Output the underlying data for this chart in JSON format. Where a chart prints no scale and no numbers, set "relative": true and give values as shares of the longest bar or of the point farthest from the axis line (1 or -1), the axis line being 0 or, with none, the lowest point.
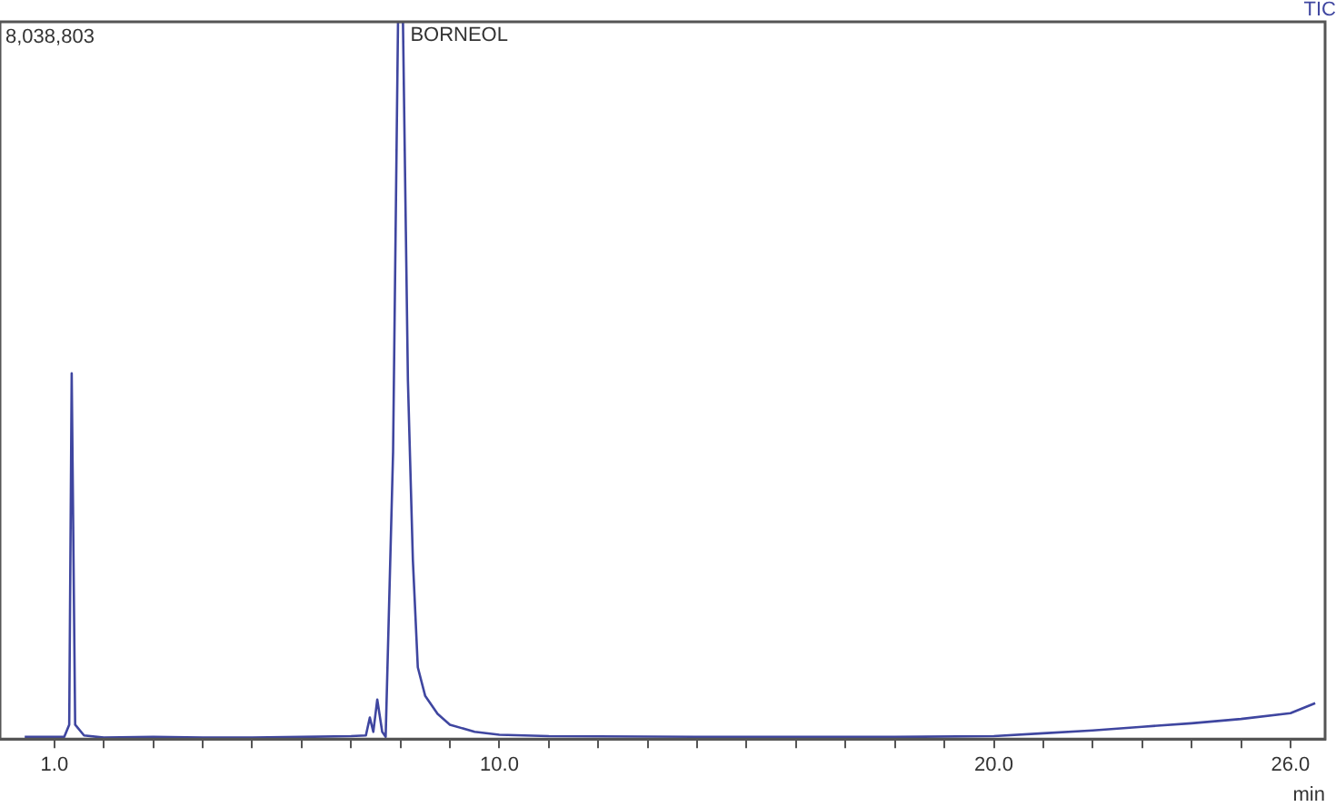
{
  "chart_data": {
    "type": "line",
    "relative": true,
    "xlabel": "min",
    "color": "#3f46a0",
    "marker": "none",
    "line_style": "solid",
    "grid": false,
    "legend": false,
    "x": [
      0.4,
      1.2,
      1.3,
      1.35,
      1.42,
      1.6,
      2.0,
      3.0,
      4.0,
      5.0,
      6.0,
      7.0,
      7.3,
      7.38,
      7.45,
      7.53,
      7.63,
      7.7,
      7.85,
      7.95,
      8.05,
      8.15,
      8.25,
      8.35,
      8.5,
      8.75,
      9.0,
      9.5,
      10,
      11,
      14,
      18,
      20,
      21,
      22,
      23,
      24,
      25,
      26,
      26.5
    ],
    "values": [
      0.003,
      0.003,
      0.02,
      0.51,
      0.02,
      0.005,
      0.002,
      0.003,
      0.002,
      0.002,
      0.003,
      0.004,
      0.005,
      0.03,
      0.01,
      0.055,
      0.01,
      0.003,
      0.4,
      1,
      1,
      0.5,
      0.25,
      0.1,
      0.06,
      0.035,
      0.02,
      0.01,
      0.006,
      0.004,
      0.003,
      0.003,
      0.004,
      0.008,
      0.012,
      0.017,
      0.022,
      0.028,
      0.036,
      0.05
    ],
    "xlim": [
      -0.1,
      26.7
    ],
    "xticks": [
      {
        "value": 1,
        "label": "1.0"
      },
      {
        "value": 2,
        "label": null
      },
      {
        "value": 3,
        "label": null
      },
      {
        "value": 4,
        "label": null
      },
      {
        "value": 5,
        "label": null
      },
      {
        "value": 6,
        "label": null
      },
      {
        "value": 7,
        "label": null
      },
      {
        "value": 8,
        "label": null
      },
      {
        "value": 9,
        "label": null
      },
      {
        "value": 10,
        "label": "10.0"
      },
      {
        "value": 11,
        "label": null
      },
      {
        "value": 12,
        "label": null
      },
      {
        "value": 13,
        "label": null
      },
      {
        "value": 14,
        "label": null
      },
      {
        "value": 15,
        "label": null
      },
      {
        "value": 16,
        "label": null
      },
      {
        "value": 17,
        "label": null
      },
      {
        "value": 18,
        "label": null
      },
      {
        "value": 19,
        "label": null
      },
      {
        "value": 20,
        "label": "20.0"
      },
      {
        "value": 21,
        "label": null
      },
      {
        "value": 22,
        "label": null
      },
      {
        "value": 23,
        "label": null
      },
      {
        "value": 24,
        "label": null
      },
      {
        "value": 25,
        "label": null
      },
      {
        "value": 26,
        "label": "26.0"
      }
    ],
    "annotations": [
      "8,038,803",
      "TIC",
      {
        "text": "BORNEOL",
        "x": 8.05,
        "y": 1
      }
    ]
  }
}
